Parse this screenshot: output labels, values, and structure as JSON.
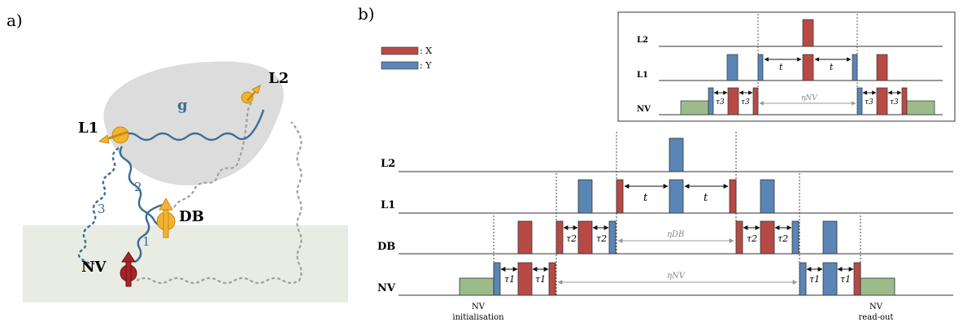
{
  "panel_a": {
    "label": "a)",
    "nodes": {
      "nv": "NV",
      "db": "DB",
      "l1": "L1",
      "l2": "L2"
    },
    "links": {
      "g": "g",
      "c1": "1",
      "c2": "2",
      "c3": "3"
    }
  },
  "panel_b": {
    "label": "b)",
    "legend": {
      "x": ": X",
      "y": ": Y"
    },
    "colors": {
      "x": "#b84a45",
      "y": "#5a86b6",
      "init": "#9cbb8a",
      "surface": "#e8ece2",
      "cloud": "#dcdcdc",
      "spin": "#f3b331",
      "nv_spin": "#a52528"
    },
    "main": {
      "rows": {
        "l2": "L2",
        "l1": "L1",
        "db": "DB",
        "nv": "NV"
      },
      "t1": "t",
      "t2": "t",
      "tau2_a": "τ2",
      "tau2_b": "τ2",
      "tau2_c": "τ2",
      "tau2_d": "τ2",
      "tau1_a": "τ1",
      "tau1_b": "τ1",
      "tau1_c": "τ1",
      "tau1_d": "τ1",
      "eta_db": "ηDB",
      "eta_nv": "ηNV",
      "nv_init": [
        "NV",
        "initialisation"
      ],
      "nv_readout": [
        "NV",
        "read-out"
      ]
    },
    "inset": {
      "rows": {
        "l2": "L2",
        "l1": "L1",
        "nv": "NV"
      },
      "t1": "t",
      "t2": "t",
      "tau3_a": "τ3",
      "tau3_b": "τ3",
      "tau3_c": "τ3",
      "tau3_d": "τ3",
      "eta_nv": "ηNV"
    }
  }
}
